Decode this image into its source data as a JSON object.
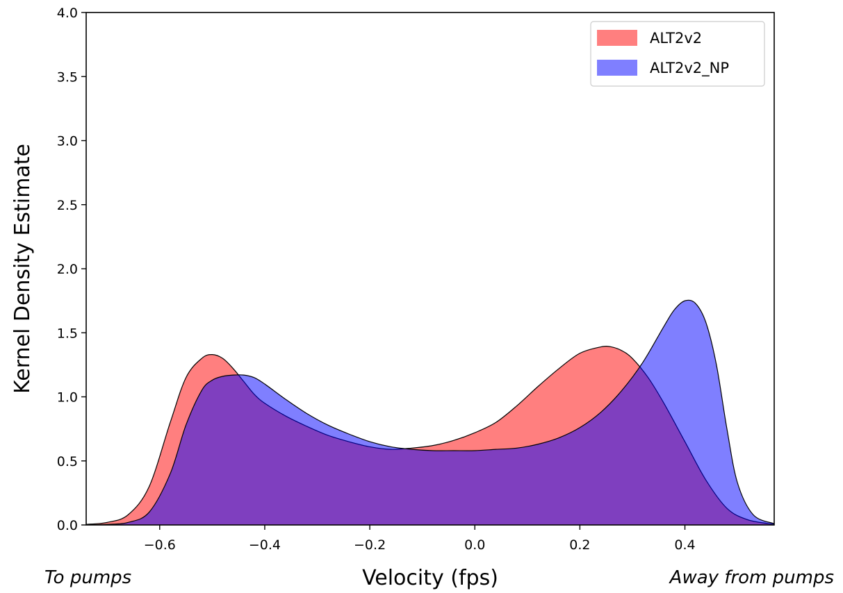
{
  "chart_data": {
    "type": "area",
    "title": "",
    "xlabel": "Velocity (fps)",
    "ylabel": "Kernel Density Estimate",
    "xlim": [
      -0.74,
      0.57
    ],
    "ylim": [
      0,
      4.0
    ],
    "x_ticks": [
      -0.6,
      -0.4,
      -0.2,
      0.0,
      0.2,
      0.4
    ],
    "x_tick_labels": [
      "−0.6",
      "−0.4",
      "−0.2",
      "0.0",
      "0.2",
      "0.4"
    ],
    "y_ticks": [
      0,
      0.5,
      1.0,
      1.5,
      2.0,
      2.5,
      3.0,
      3.5,
      4.0
    ],
    "y_tick_labels": [
      "0.0",
      "0.5",
      "1.0",
      "1.5",
      "2.0",
      "2.5",
      "3.0",
      "3.5",
      "4.0"
    ],
    "annotations": {
      "left": "To pumps",
      "right": "Away from pumps"
    },
    "legend": {
      "placement": "top-right"
    },
    "grid": false,
    "series": [
      {
        "name": "ALT2v2",
        "color": "#ff0000",
        "opacity": 0.5,
        "x": [
          -0.74,
          -0.7,
          -0.66,
          -0.62,
          -0.58,
          -0.55,
          -0.52,
          -0.5,
          -0.48,
          -0.46,
          -0.44,
          -0.42,
          -0.4,
          -0.36,
          -0.32,
          -0.28,
          -0.24,
          -0.2,
          -0.16,
          -0.12,
          -0.08,
          -0.04,
          0.0,
          0.04,
          0.08,
          0.12,
          0.16,
          0.2,
          0.24,
          0.26,
          0.28,
          0.3,
          0.33,
          0.36,
          0.4,
          0.44,
          0.48,
          0.52,
          0.57
        ],
        "y": [
          0.005,
          0.02,
          0.08,
          0.3,
          0.8,
          1.15,
          1.3,
          1.33,
          1.3,
          1.22,
          1.12,
          1.02,
          0.95,
          0.85,
          0.77,
          0.7,
          0.65,
          0.61,
          0.59,
          0.6,
          0.62,
          0.66,
          0.72,
          0.8,
          0.93,
          1.08,
          1.22,
          1.34,
          1.39,
          1.39,
          1.36,
          1.3,
          1.15,
          0.95,
          0.65,
          0.35,
          0.13,
          0.04,
          0.005
        ]
      },
      {
        "name": "ALT2v2_NP",
        "color": "#0000ff",
        "opacity": 0.5,
        "x": [
          -0.74,
          -0.7,
          -0.66,
          -0.62,
          -0.58,
          -0.55,
          -0.52,
          -0.5,
          -0.48,
          -0.46,
          -0.44,
          -0.42,
          -0.4,
          -0.36,
          -0.32,
          -0.28,
          -0.24,
          -0.2,
          -0.16,
          -0.12,
          -0.08,
          -0.04,
          0.0,
          0.04,
          0.08,
          0.12,
          0.16,
          0.2,
          0.24,
          0.28,
          0.32,
          0.36,
          0.38,
          0.4,
          0.42,
          0.44,
          0.46,
          0.48,
          0.5,
          0.53,
          0.57
        ],
        "y": [
          0.001,
          0.005,
          0.02,
          0.1,
          0.4,
          0.78,
          1.05,
          1.13,
          1.16,
          1.17,
          1.17,
          1.15,
          1.1,
          0.98,
          0.87,
          0.78,
          0.71,
          0.65,
          0.61,
          0.59,
          0.58,
          0.58,
          0.58,
          0.59,
          0.6,
          0.63,
          0.68,
          0.76,
          0.88,
          1.05,
          1.27,
          1.55,
          1.68,
          1.75,
          1.73,
          1.58,
          1.25,
          0.75,
          0.33,
          0.08,
          0.01
        ]
      }
    ]
  }
}
